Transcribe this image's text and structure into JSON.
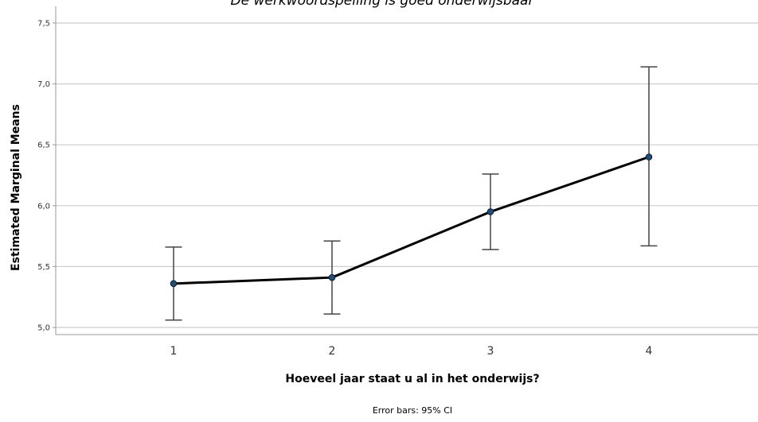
{
  "chart_data": {
    "type": "line",
    "title": "De werkwoordspelling is goed onderwijsbaar",
    "xlabel": "Hoeveel jaar staat u al in het onderwijs?",
    "ylabel": "Estimated Marginal Means",
    "footnote": "Error bars: 95% CI",
    "categories": [
      "1",
      "2",
      "3",
      "4"
    ],
    "y_ticks": [
      "5,0",
      "5,5",
      "6,0",
      "6,5",
      "7,0",
      "7,5"
    ],
    "ylim": [
      5.0,
      7.5
    ],
    "grid": true,
    "series": [
      {
        "values": [
          5.36,
          5.41,
          5.95,
          6.4
        ],
        "ci_lower": [
          5.06,
          5.11,
          5.64,
          5.67
        ],
        "ci_upper": [
          5.66,
          5.71,
          6.26,
          7.14
        ]
      }
    ],
    "colors": {
      "line": "#000000",
      "marker": "#1f4e79",
      "grid": "#cccccc",
      "errorbar": "#444444"
    }
  }
}
